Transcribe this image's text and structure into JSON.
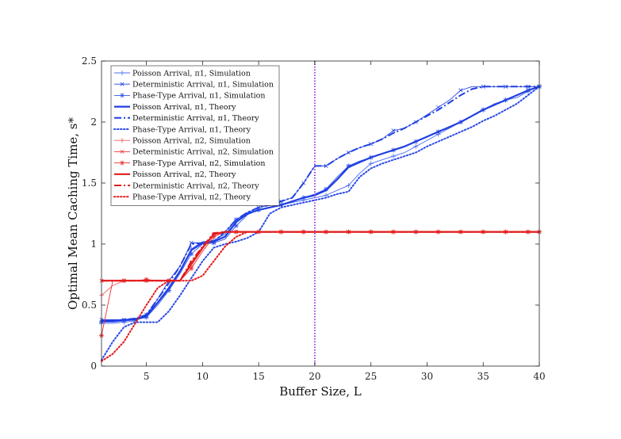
{
  "chart_data": {
    "type": "line",
    "xlabel": "Buffer Size, L",
    "ylabel": "Optimal Mean Caching Time, s*",
    "xlim": [
      1,
      40
    ],
    "ylim": [
      0,
      2.5
    ],
    "xticks": [
      5,
      10,
      15,
      20,
      25,
      30,
      35,
      40
    ],
    "yticks": [
      0,
      0.5,
      1,
      1.5,
      2,
      2.5
    ],
    "legend_position": "top-left",
    "grid": false,
    "vertical_line": {
      "x": 20,
      "color": "#9b30d9",
      "style": "dotted"
    },
    "series": [
      {
        "name": "Poisson Arrival, π1, Simulation",
        "color": "#4a6cf0",
        "style": "thin",
        "marker": "plus",
        "x": [
          1,
          2,
          3,
          4,
          5,
          6,
          7,
          8,
          9,
          10,
          11,
          12,
          13,
          14,
          15,
          16,
          17,
          18,
          19,
          20,
          21,
          22,
          23,
          24,
          25,
          26,
          27,
          28,
          29,
          30,
          31,
          32,
          33,
          34,
          35,
          36,
          37,
          38,
          39,
          40
        ],
        "y": [
          0.35,
          0.35,
          0.36,
          0.37,
          0.42,
          0.52,
          0.62,
          0.78,
          0.96,
          1.02,
          1.03,
          1.08,
          1.2,
          1.25,
          1.28,
          1.3,
          1.32,
          1.34,
          1.36,
          1.38,
          1.4,
          1.44,
          1.48,
          1.58,
          1.66,
          1.69,
          1.72,
          1.75,
          1.8,
          1.85,
          1.9,
          1.95,
          2.0,
          2.05,
          2.1,
          2.15,
          2.18,
          2.2,
          2.25,
          2.3
        ]
      },
      {
        "name": "Deterministic Arrival, π1, Simulation",
        "color": "#2545e8",
        "style": "thin",
        "marker": "x",
        "x": [
          1,
          2,
          3,
          4,
          5,
          6,
          7,
          8,
          9,
          10,
          11,
          12,
          13,
          14,
          15,
          16,
          17,
          18,
          19,
          20,
          21,
          22,
          23,
          24,
          25,
          26,
          27,
          28,
          29,
          30,
          31,
          32,
          33,
          34,
          35,
          36,
          37,
          38,
          39,
          40
        ],
        "y": [
          0.38,
          0.38,
          0.38,
          0.39,
          0.42,
          0.55,
          0.7,
          0.82,
          1.01,
          1.01,
          1.02,
          1.1,
          1.2,
          1.26,
          1.3,
          1.32,
          1.35,
          1.38,
          1.5,
          1.64,
          1.64,
          1.7,
          1.75,
          1.79,
          1.82,
          1.86,
          1.93,
          1.95,
          2.0,
          2.06,
          2.12,
          2.18,
          2.26,
          2.29,
          2.29,
          2.29,
          2.29,
          2.29,
          2.29,
          2.29
        ]
      },
      {
        "name": "Phase-Type Arrival, π1, Simulation",
        "color": "#3355ee",
        "style": "thin",
        "marker": "star",
        "x": [
          1,
          2,
          3,
          4,
          5,
          6,
          7,
          8,
          9,
          10,
          11,
          12,
          13,
          14,
          15,
          16,
          17,
          18,
          19,
          20,
          21,
          22,
          23,
          24,
          25,
          26,
          27,
          28,
          29,
          30,
          31,
          32,
          33,
          34,
          35,
          36,
          37,
          38,
          39,
          40
        ],
        "y": [
          0.36,
          0.36,
          0.37,
          0.38,
          0.4,
          0.5,
          0.62,
          0.76,
          0.92,
          1.0,
          1.01,
          1.04,
          1.15,
          1.24,
          1.28,
          1.3,
          1.32,
          1.35,
          1.38,
          1.41,
          1.45,
          1.55,
          1.64,
          1.68,
          1.71,
          1.74,
          1.77,
          1.8,
          1.84,
          1.88,
          1.92,
          1.96,
          2.0,
          2.05,
          2.1,
          2.14,
          2.18,
          2.22,
          2.26,
          2.29
        ]
      },
      {
        "name": "Poisson Arrival, π1, Theory",
        "color": "#1f3fe0",
        "style": "solid-thick",
        "marker": "none",
        "x": [
          1,
          2,
          3,
          4,
          5,
          6,
          7,
          8,
          9,
          10,
          11,
          12,
          13,
          14,
          15,
          16,
          17,
          18,
          19,
          20,
          21,
          22,
          23,
          24,
          25,
          26,
          27,
          28,
          29,
          30,
          31,
          32,
          33,
          34,
          35,
          36,
          37,
          38,
          39,
          40
        ],
        "y": [
          0.37,
          0.37,
          0.38,
          0.38,
          0.41,
          0.52,
          0.64,
          0.78,
          0.95,
          1.01,
          1.02,
          1.06,
          1.18,
          1.25,
          1.28,
          1.3,
          1.32,
          1.35,
          1.38,
          1.4,
          1.44,
          1.53,
          1.63,
          1.67,
          1.71,
          1.74,
          1.77,
          1.8,
          1.84,
          1.88,
          1.92,
          1.96,
          2.0,
          2.05,
          2.1,
          2.14,
          2.18,
          2.22,
          2.26,
          2.29
        ]
      },
      {
        "name": "Deterministic Arrival, π1, Theory",
        "color": "#1f3fe0",
        "style": "dashdot",
        "marker": "none",
        "x": [
          1,
          2,
          3,
          4,
          5,
          6,
          7,
          8,
          9,
          10,
          11,
          12,
          13,
          14,
          15,
          16,
          17,
          18,
          19,
          20,
          21,
          22,
          23,
          24,
          25,
          26,
          27,
          28,
          29,
          30,
          31,
          32,
          33,
          34,
          35,
          36,
          37,
          38,
          39,
          40
        ],
        "y": [
          0.37,
          0.37,
          0.38,
          0.39,
          0.42,
          0.55,
          0.68,
          0.82,
          1.0,
          1.01,
          1.02,
          1.1,
          1.2,
          1.26,
          1.3,
          1.32,
          1.35,
          1.38,
          1.5,
          1.64,
          1.64,
          1.7,
          1.75,
          1.79,
          1.82,
          1.86,
          1.91,
          1.95,
          2.0,
          2.05,
          2.1,
          2.16,
          2.22,
          2.27,
          2.29,
          2.29,
          2.29,
          2.29,
          2.29,
          2.29
        ]
      },
      {
        "name": "Phase-Type Arrival, π1, Theory",
        "color": "#2a4ae6",
        "style": "dotted",
        "marker": "none",
        "x": [
          1,
          2,
          3,
          4,
          5,
          6,
          7,
          8,
          9,
          10,
          11,
          12,
          13,
          14,
          15,
          16,
          17,
          18,
          19,
          20,
          21,
          22,
          23,
          24,
          25,
          26,
          27,
          28,
          29,
          30,
          31,
          32,
          33,
          34,
          35,
          36,
          37,
          38,
          39,
          40
        ],
        "y": [
          0.05,
          0.2,
          0.32,
          0.36,
          0.36,
          0.36,
          0.45,
          0.58,
          0.72,
          0.86,
          0.97,
          1.0,
          1.02,
          1.05,
          1.1,
          1.25,
          1.3,
          1.32,
          1.34,
          1.36,
          1.38,
          1.41,
          1.43,
          1.55,
          1.62,
          1.66,
          1.69,
          1.72,
          1.75,
          1.8,
          1.84,
          1.88,
          1.92,
          1.96,
          2.01,
          2.05,
          2.1,
          2.15,
          2.22,
          2.29
        ]
      },
      {
        "name": "Poisson Arrival, π2, Simulation",
        "color": "#f06060",
        "style": "thin",
        "marker": "plus",
        "x": [
          1,
          2,
          3,
          4,
          5,
          6,
          7,
          8,
          9,
          10,
          11,
          12,
          13,
          14,
          15,
          16,
          17,
          18,
          19,
          20,
          21,
          22,
          23,
          24,
          25,
          26,
          27,
          28,
          29,
          30,
          31,
          32,
          33,
          34,
          35,
          36,
          37,
          38,
          39,
          40
        ],
        "y": [
          0.58,
          0.66,
          0.7,
          0.7,
          0.7,
          0.7,
          0.7,
          0.7,
          0.82,
          0.96,
          1.08,
          1.1,
          1.1,
          1.1,
          1.1,
          1.1,
          1.1,
          1.1,
          1.1,
          1.1,
          1.1,
          1.1,
          1.1,
          1.1,
          1.1,
          1.1,
          1.1,
          1.1,
          1.1,
          1.1,
          1.1,
          1.1,
          1.1,
          1.1,
          1.1,
          1.1,
          1.1,
          1.1,
          1.1,
          1.1
        ]
      },
      {
        "name": "Deterministic Arrival, π2, Simulation",
        "color": "#ee3a3a",
        "style": "thin",
        "marker": "x",
        "x": [
          1,
          2,
          3,
          4,
          5,
          6,
          7,
          8,
          9,
          10,
          11,
          12,
          13,
          14,
          15,
          16,
          17,
          18,
          19,
          20,
          21,
          22,
          23,
          24,
          25,
          26,
          27,
          28,
          29,
          30,
          31,
          32,
          33,
          34,
          35,
          36,
          37,
          38,
          39,
          40
        ],
        "y": [
          0.7,
          0.7,
          0.7,
          0.7,
          0.7,
          0.7,
          0.7,
          0.7,
          0.85,
          0.97,
          1.08,
          1.1,
          1.1,
          1.1,
          1.1,
          1.1,
          1.1,
          1.1,
          1.1,
          1.1,
          1.1,
          1.1,
          1.1,
          1.1,
          1.1,
          1.1,
          1.1,
          1.1,
          1.1,
          1.1,
          1.1,
          1.1,
          1.1,
          1.1,
          1.1,
          1.1,
          1.1,
          1.1,
          1.1,
          1.1
        ]
      },
      {
        "name": "Phase-Type Arrival, π2, Simulation",
        "color": "#e83030",
        "style": "thin",
        "marker": "star",
        "x": [
          1,
          2,
          3,
          4,
          5,
          6,
          7,
          8,
          9,
          10,
          11,
          12,
          13,
          14,
          15,
          16,
          17,
          18,
          19,
          20,
          21,
          22,
          23,
          24,
          25,
          26,
          27,
          28,
          29,
          30,
          31,
          32,
          33,
          34,
          35,
          36,
          37,
          38,
          39,
          40
        ],
        "y": [
          0.25,
          0.7,
          0.7,
          0.7,
          0.71,
          0.7,
          0.7,
          0.7,
          0.8,
          0.94,
          1.06,
          1.1,
          1.1,
          1.1,
          1.1,
          1.1,
          1.1,
          1.1,
          1.1,
          1.1,
          1.1,
          1.1,
          1.1,
          1.1,
          1.1,
          1.1,
          1.1,
          1.1,
          1.1,
          1.1,
          1.1,
          1.1,
          1.1,
          1.1,
          1.1,
          1.1,
          1.1,
          1.1,
          1.1,
          1.1
        ]
      },
      {
        "name": "Poisson Arrival, π2, Theory",
        "color": "#e31a1a",
        "style": "solid-thick",
        "marker": "none",
        "x": [
          1,
          2,
          3,
          4,
          5,
          6,
          7,
          8,
          9,
          10,
          11,
          12,
          13,
          14,
          15,
          16,
          17,
          18,
          19,
          20,
          21,
          22,
          23,
          24,
          25,
          26,
          27,
          28,
          29,
          30,
          31,
          32,
          33,
          34,
          35,
          36,
          37,
          38,
          39,
          40
        ],
        "y": [
          0.7,
          0.7,
          0.7,
          0.7,
          0.7,
          0.7,
          0.7,
          0.7,
          0.84,
          0.97,
          1.08,
          1.1,
          1.1,
          1.1,
          1.1,
          1.1,
          1.1,
          1.1,
          1.1,
          1.1,
          1.1,
          1.1,
          1.1,
          1.1,
          1.1,
          1.1,
          1.1,
          1.1,
          1.1,
          1.1,
          1.1,
          1.1,
          1.1,
          1.1,
          1.1,
          1.1,
          1.1,
          1.1,
          1.1,
          1.1
        ]
      },
      {
        "name": "Deterministic Arrival, π2, Theory",
        "color": "#e31a1a",
        "style": "dashdot",
        "marker": "none",
        "x": [
          1,
          2,
          3,
          4,
          5,
          6,
          7,
          8,
          9,
          10,
          11,
          12,
          13,
          14,
          15,
          16,
          17,
          18,
          19,
          20,
          21,
          22,
          23,
          24,
          25,
          26,
          27,
          28,
          29,
          30,
          31,
          32,
          33,
          34,
          35,
          36,
          37,
          38,
          39,
          40
        ],
        "y": [
          0.7,
          0.7,
          0.7,
          0.7,
          0.7,
          0.7,
          0.7,
          0.7,
          0.86,
          0.98,
          1.09,
          1.1,
          1.1,
          1.1,
          1.1,
          1.1,
          1.1,
          1.1,
          1.1,
          1.1,
          1.1,
          1.1,
          1.1,
          1.1,
          1.1,
          1.1,
          1.1,
          1.1,
          1.1,
          1.1,
          1.1,
          1.1,
          1.1,
          1.1,
          1.1,
          1.1,
          1.1,
          1.1,
          1.1,
          1.1
        ]
      },
      {
        "name": "Phase-Type Arrival, π2, Theory",
        "color": "#e31a1a",
        "style": "dotted",
        "marker": "none",
        "x": [
          1,
          2,
          3,
          4,
          5,
          6,
          7,
          8,
          9,
          10,
          11,
          12,
          13,
          14,
          15,
          16,
          17,
          18,
          19,
          20,
          21,
          22,
          23,
          24,
          25,
          26,
          27,
          28,
          29,
          30,
          31,
          32,
          33,
          34,
          35,
          36,
          37,
          38,
          39,
          40
        ],
        "y": [
          0.04,
          0.1,
          0.2,
          0.35,
          0.5,
          0.64,
          0.7,
          0.7,
          0.7,
          0.74,
          0.86,
          0.98,
          1.06,
          1.1,
          1.1,
          1.1,
          1.1,
          1.1,
          1.1,
          1.1,
          1.1,
          1.1,
          1.1,
          1.1,
          1.1,
          1.1,
          1.1,
          1.1,
          1.1,
          1.1,
          1.1,
          1.1,
          1.1,
          1.1,
          1.1,
          1.1,
          1.1,
          1.1,
          1.1,
          1.1
        ]
      }
    ]
  }
}
